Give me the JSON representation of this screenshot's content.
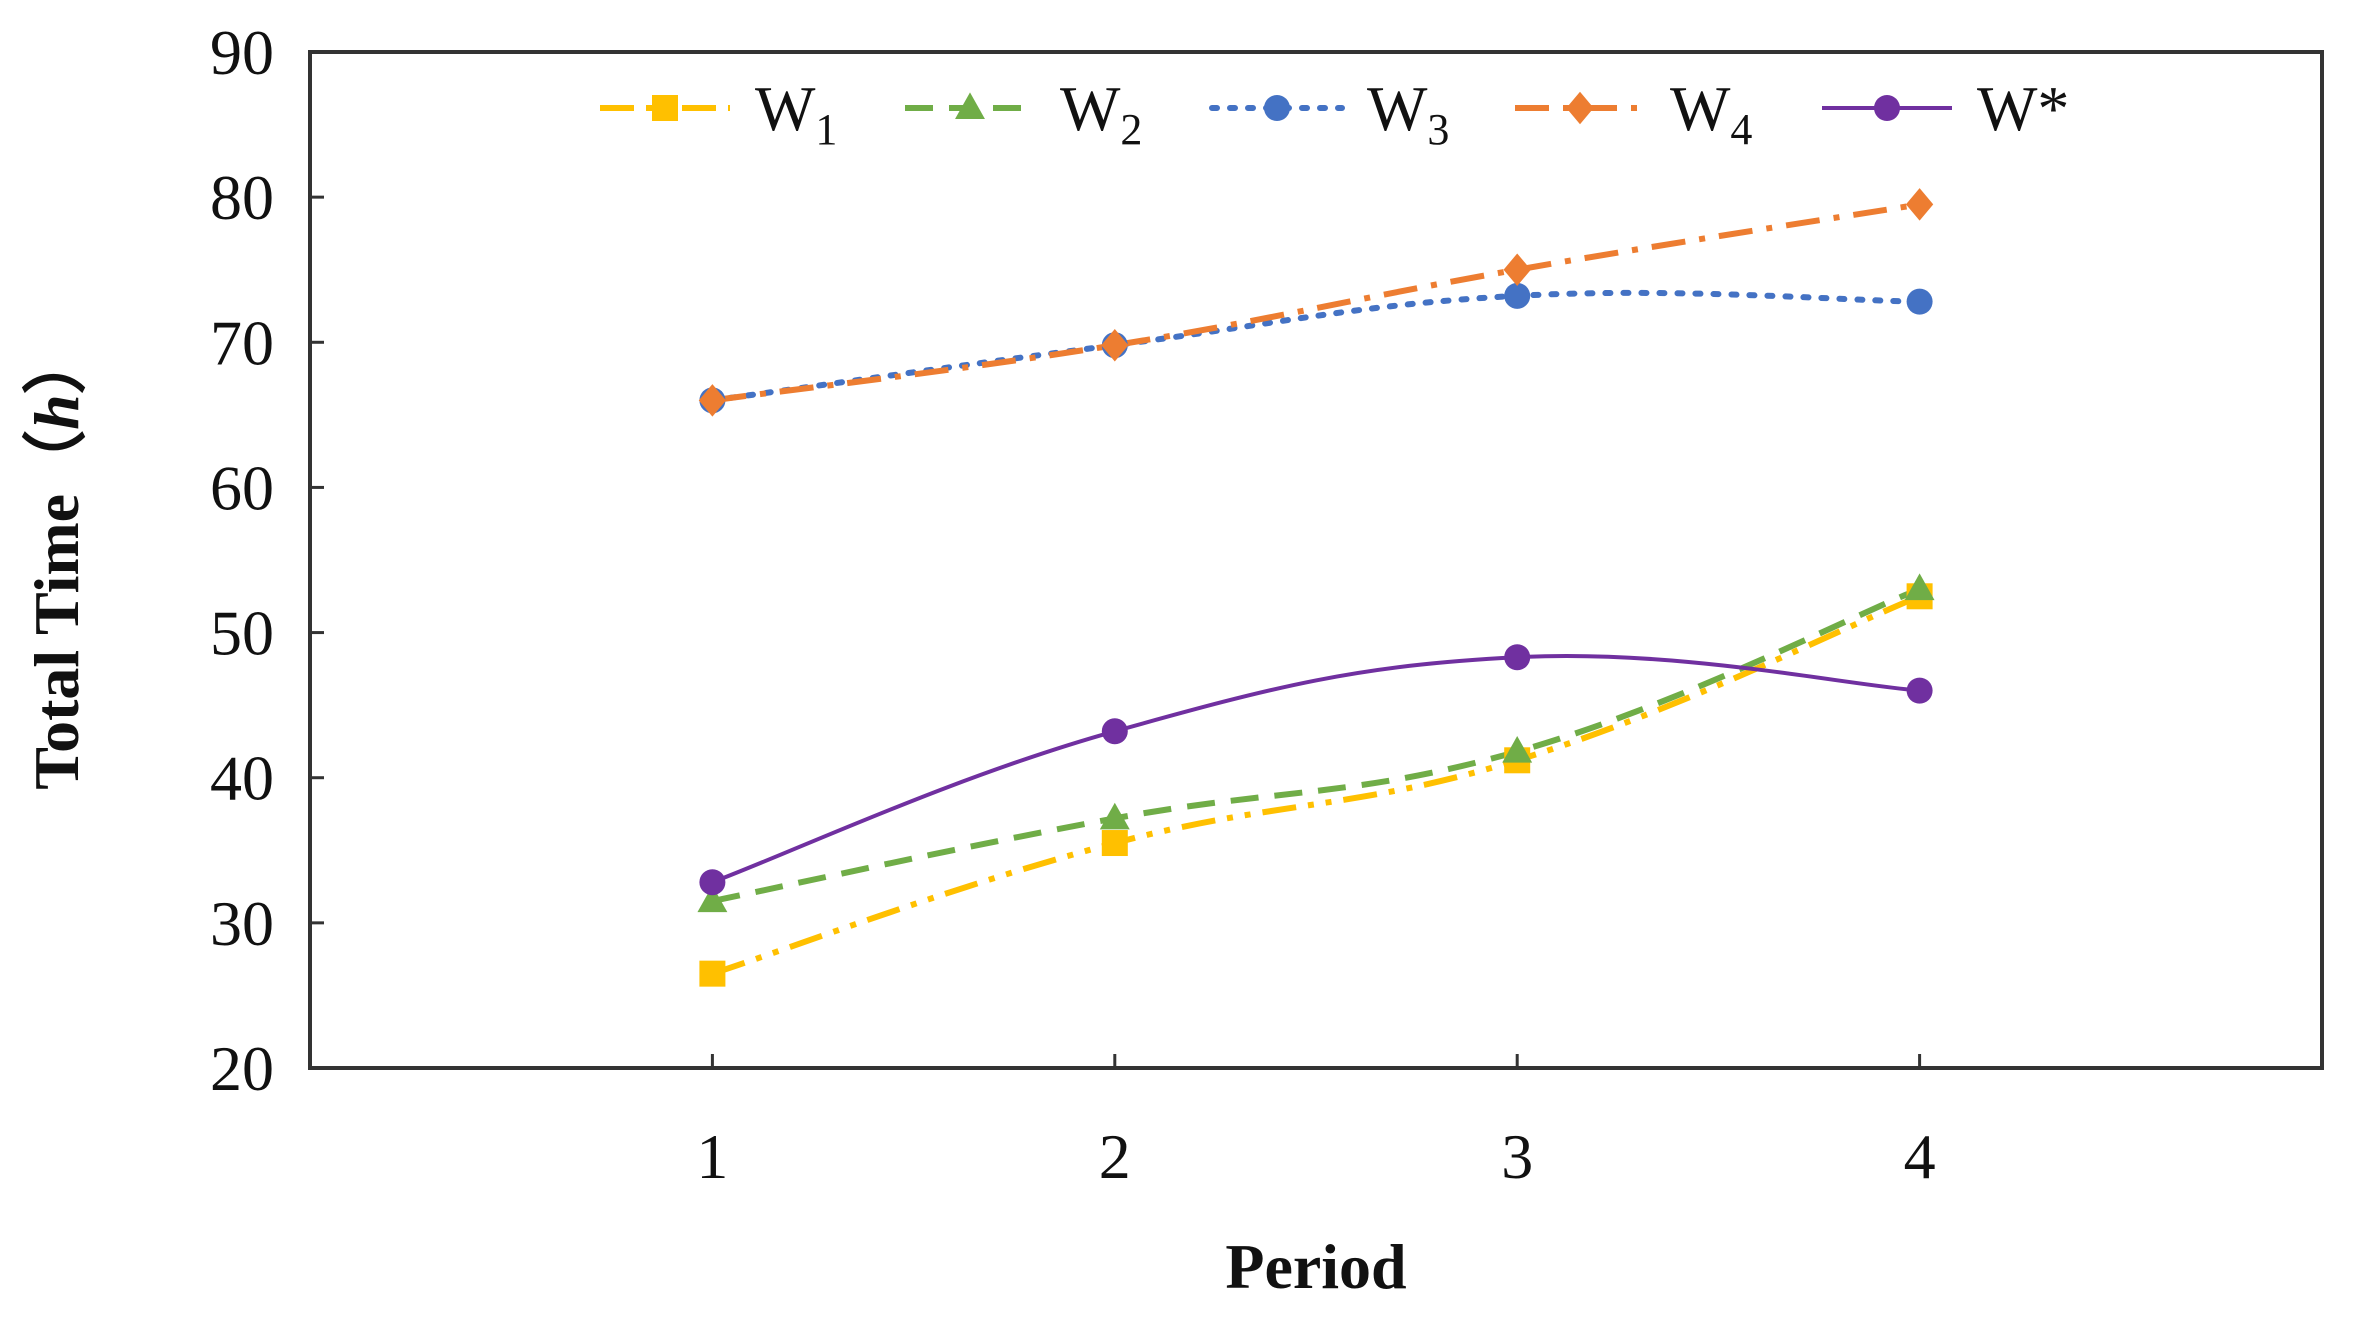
{
  "chart_data": {
    "type": "line",
    "title": "",
    "xlabel": "Period",
    "ylabel": "Total Time（",
    "ylabel_italic": "h",
    "ylabel_close": "）",
    "x": [
      1,
      2,
      3,
      4
    ],
    "x_ticks": [
      "1",
      "2",
      "3",
      "4"
    ],
    "xlim": [
      0,
      5
    ],
    "ylim": [
      20,
      90
    ],
    "y_ticks": [
      "20",
      "30",
      "40",
      "50",
      "60",
      "70",
      "80",
      "90"
    ],
    "y_tick_values": [
      20,
      30,
      40,
      50,
      60,
      70,
      80,
      90
    ],
    "grid": false,
    "legend_position": "top",
    "series": [
      {
        "name": "W",
        "sub": "1",
        "color": "#FFC000",
        "marker": "square",
        "dash": "dash-dot-dot",
        "values": [
          26.5,
          35.5,
          41.2,
          52.5
        ]
      },
      {
        "name": "W",
        "sub": "2",
        "color": "#70AD47",
        "marker": "triangle",
        "dash": "dash",
        "values": [
          31.5,
          37.2,
          41.8,
          53.0
        ]
      },
      {
        "name": "W",
        "sub": "3",
        "color": "#4472C4",
        "marker": "circle",
        "dash": "dot",
        "values": [
          66.0,
          69.8,
          73.2,
          72.8
        ]
      },
      {
        "name": "W",
        "sub": "4",
        "color": "#ED7D31",
        "marker": "diamond",
        "dash": "dash-dot",
        "values": [
          66.0,
          69.8,
          75.0,
          79.5
        ]
      },
      {
        "name": "W*",
        "sub": "",
        "color": "#7030A0",
        "marker": "circle",
        "dash": "solid",
        "values": [
          32.8,
          43.2,
          48.3,
          46.0
        ]
      }
    ]
  }
}
